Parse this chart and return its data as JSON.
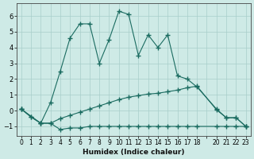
{
  "xlabel": "Humidex (Indice chaleur)",
  "background_color": "#ceeae6",
  "grid_color": "#a8ceca",
  "line_color": "#1a6b60",
  "xlim": [
    -0.5,
    23.5
  ],
  "ylim": [
    -1.6,
    6.8
  ],
  "yticks": [
    -1,
    0,
    1,
    2,
    3,
    4,
    5,
    6
  ],
  "xtick_labels": [
    "0",
    "1",
    "2",
    "3",
    "4",
    "5",
    "6",
    "7",
    "8",
    "9",
    "10",
    "11",
    "12",
    "13",
    "14",
    "15",
    "16",
    "17",
    "18",
    "",
    "20",
    "21",
    "22",
    "23"
  ],
  "xtick_positions": [
    0,
    1,
    2,
    3,
    4,
    5,
    6,
    7,
    8,
    9,
    10,
    11,
    12,
    13,
    14,
    15,
    16,
    17,
    18,
    19,
    20,
    21,
    22,
    23
  ],
  "series": [
    {
      "x": [
        0,
        1,
        2,
        3,
        4,
        5,
        6,
        7,
        8,
        9,
        10,
        11,
        12,
        13,
        14,
        15,
        16,
        17,
        18,
        20,
        21,
        22,
        23
      ],
      "y": [
        0.1,
        -0.4,
        -0.8,
        -0.8,
        -1.2,
        -1.1,
        -1.1,
        -1.0,
        -1.0,
        -1.0,
        -1.0,
        -1.0,
        -1.0,
        -1.0,
        -1.0,
        -1.0,
        -1.0,
        -1.0,
        -1.0,
        -1.0,
        -1.0,
        -1.0,
        -1.0
      ]
    },
    {
      "x": [
        0,
        1,
        2,
        3,
        4,
        5,
        6,
        7,
        8,
        9,
        10,
        11,
        12,
        13,
        14,
        15,
        16,
        17,
        18,
        20,
        21,
        22,
        23
      ],
      "y": [
        0.1,
        -0.4,
        -0.8,
        -0.8,
        -0.5,
        -0.3,
        -0.1,
        0.1,
        0.3,
        0.5,
        0.7,
        0.85,
        0.95,
        1.05,
        1.1,
        1.2,
        1.3,
        1.45,
        1.55,
        0.05,
        -0.45,
        -0.45,
        -1.0
      ]
    },
    {
      "x": [
        0,
        2,
        3,
        4,
        5,
        6,
        7,
        8,
        9,
        10,
        11,
        12,
        13,
        14,
        15,
        16,
        17,
        18,
        20,
        21,
        22,
        23
      ],
      "y": [
        0.1,
        -0.8,
        0.5,
        2.5,
        4.6,
        5.5,
        5.5,
        3.0,
        4.5,
        6.3,
        6.1,
        3.5,
        4.8,
        4.0,
        4.8,
        2.2,
        2.0,
        1.5,
        0.1,
        -0.45,
        -0.45,
        -1.0
      ]
    }
  ]
}
